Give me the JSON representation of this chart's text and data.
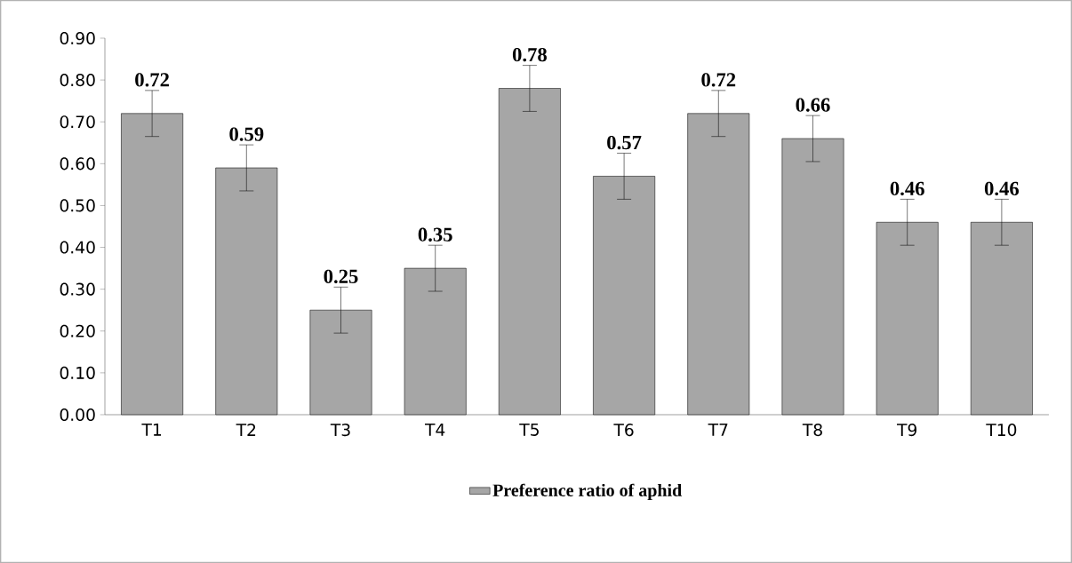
{
  "chart_data": {
    "type": "bar",
    "categories": [
      "T1",
      "T2",
      "T3",
      "T4",
      "T5",
      "T6",
      "T7",
      "T8",
      "T9",
      "T10"
    ],
    "series": [
      {
        "name": "Preference ratio of aphid",
        "color": "#a6a6a6",
        "values": [
          0.72,
          0.59,
          0.25,
          0.35,
          0.78,
          0.57,
          0.72,
          0.66,
          0.46,
          0.46
        ],
        "errors": [
          0.055,
          0.055,
          0.055,
          0.055,
          0.055,
          0.055,
          0.055,
          0.055,
          0.055,
          0.055
        ]
      }
    ],
    "ylim": [
      0,
      0.9
    ],
    "yticks": [
      {
        "value": 0,
        "label": "0.00"
      },
      {
        "value": 0.1,
        "label": "0.10"
      },
      {
        "value": 0.2,
        "label": "0.20"
      },
      {
        "value": 0.3,
        "label": "0.30"
      },
      {
        "value": 0.4,
        "label": "0.40"
      },
      {
        "value": 0.5,
        "label": "0.50"
      },
      {
        "value": 0.6,
        "label": "0.60"
      },
      {
        "value": 0.7,
        "label": "0.70"
      },
      {
        "value": 0.8,
        "label": "0.80"
      },
      {
        "value": 0.9,
        "label": "0.90"
      }
    ],
    "data_labels": true,
    "grid": false,
    "legend": "bottom"
  }
}
